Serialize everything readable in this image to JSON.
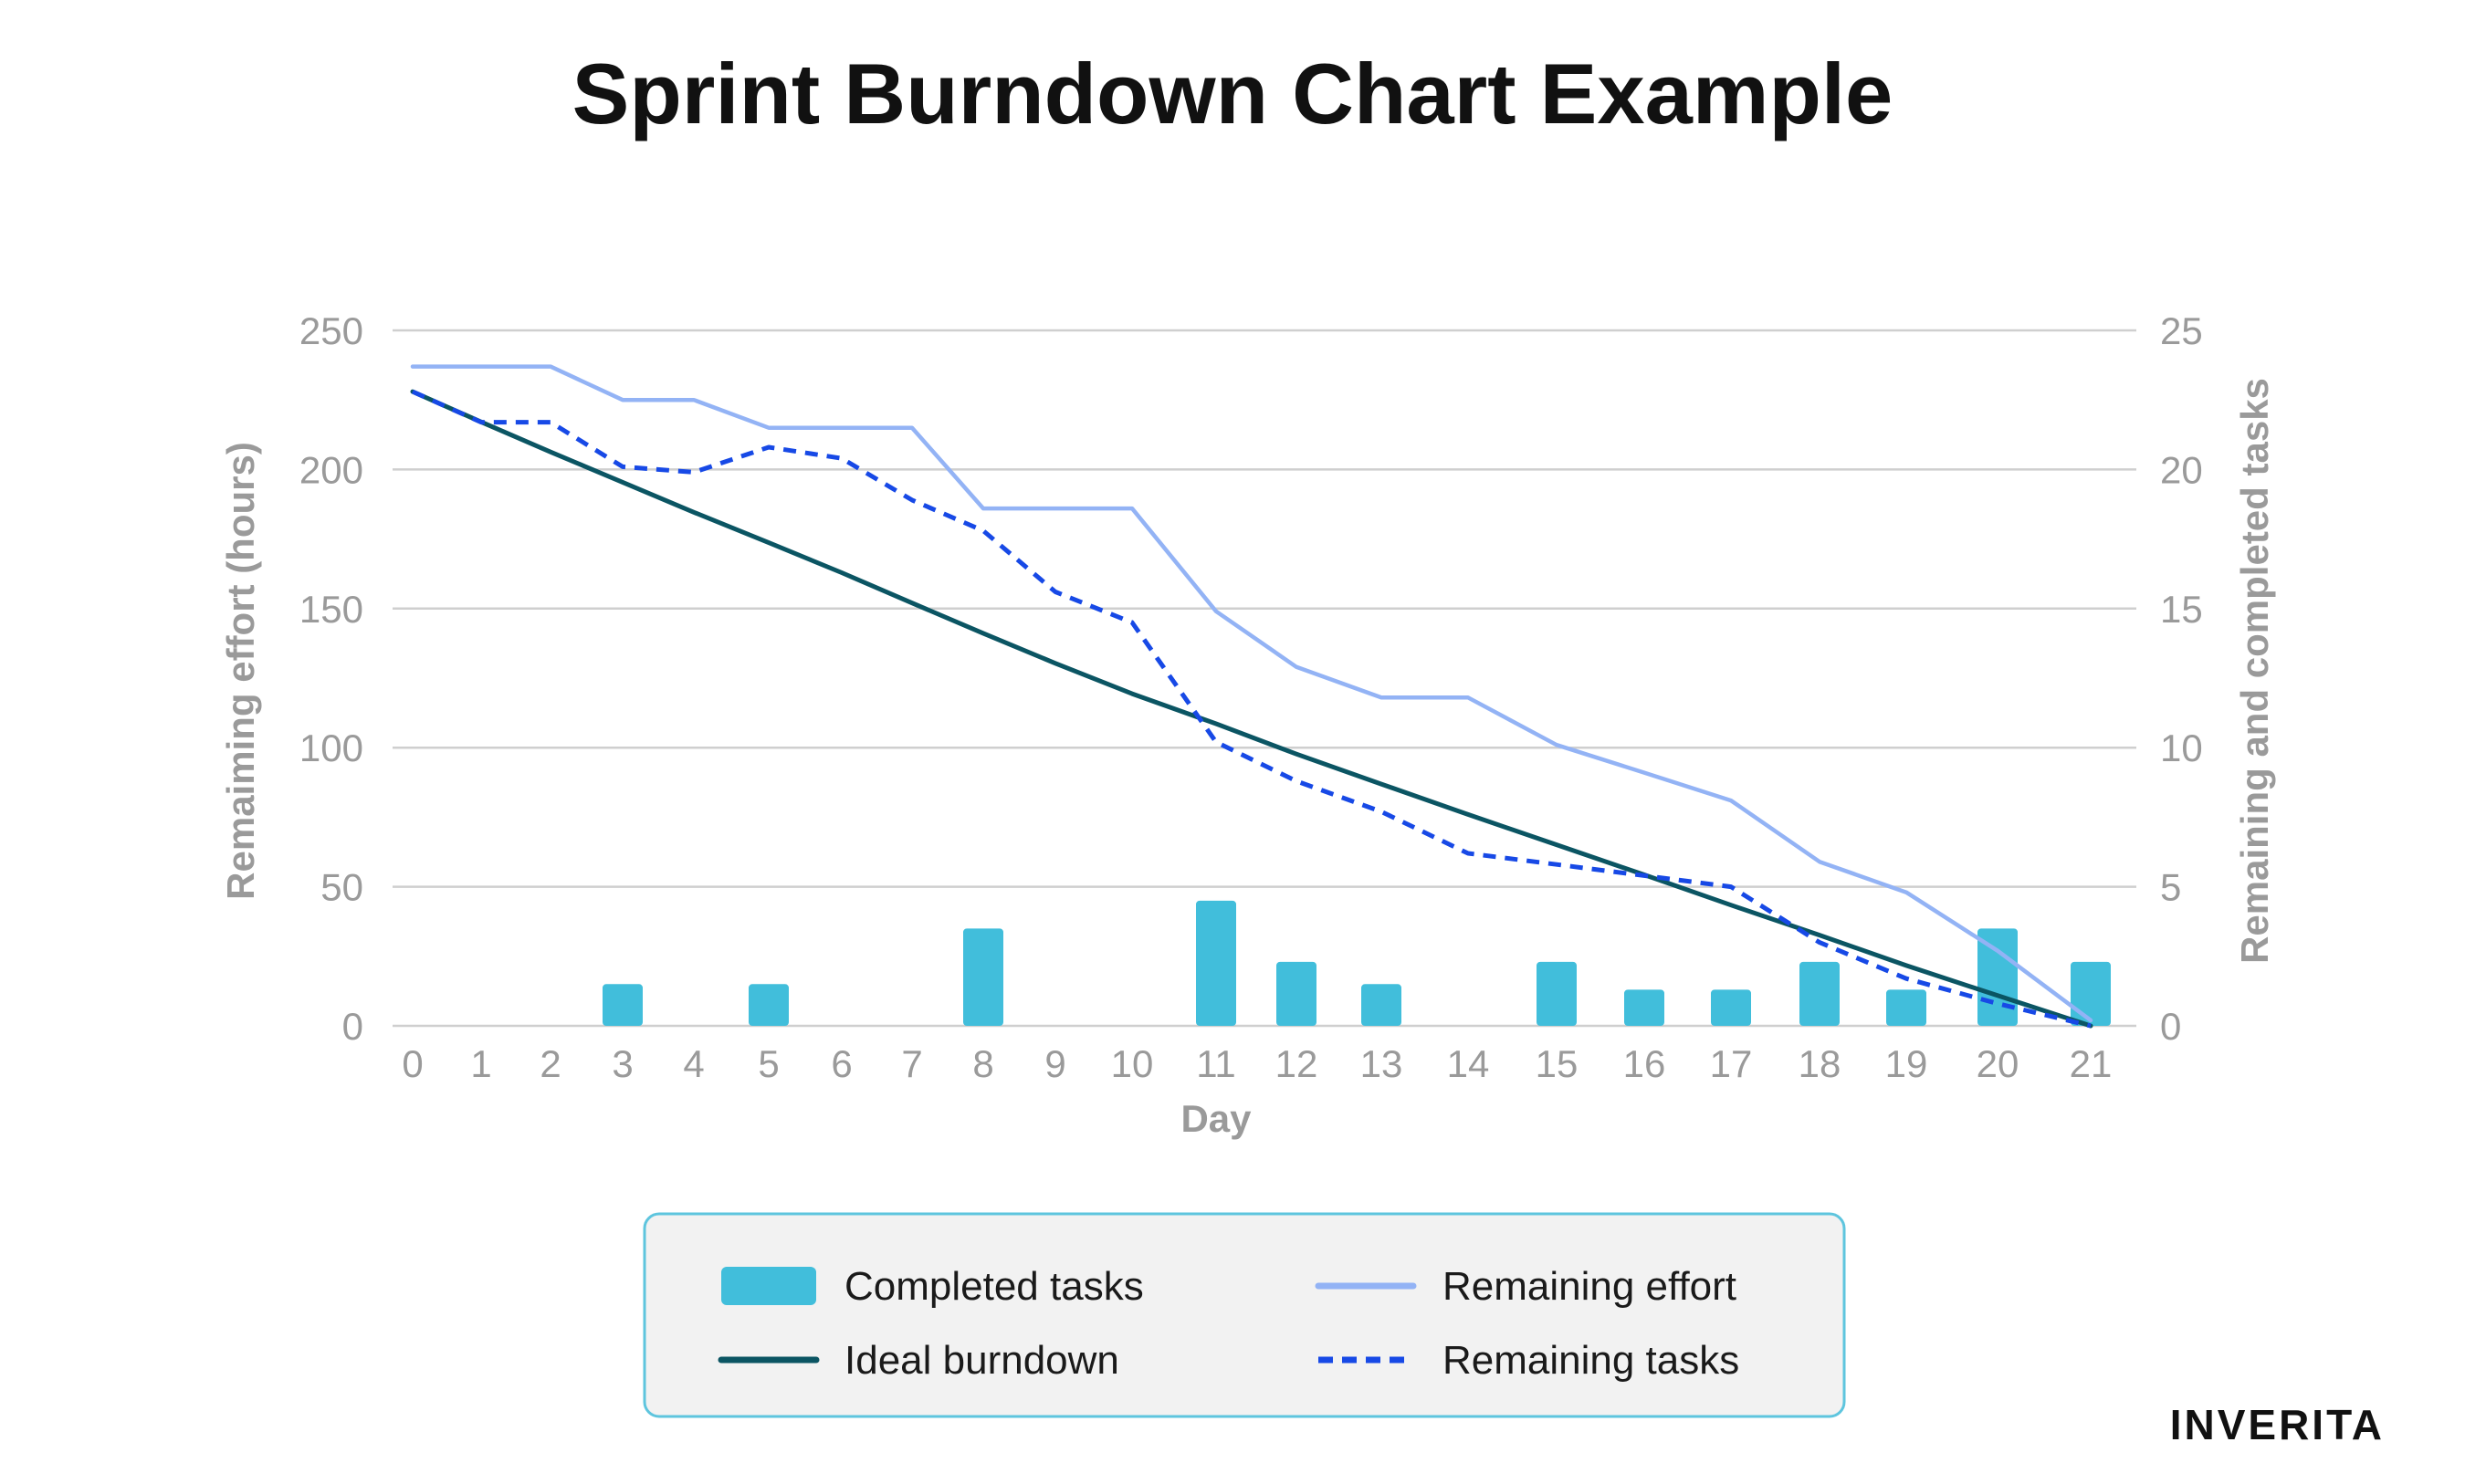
{
  "title": "Sprint Burndown Chart Example",
  "brand": "INVERITA",
  "chart_data": {
    "type": "bar+line",
    "title": "Sprint Burndown Chart Example",
    "xlabel": "Day",
    "ylabel_left": "Remaiming effort (hours)",
    "ylabel_right": "Remaining and completed tasks",
    "x": [
      0,
      1,
      2,
      3,
      4,
      5,
      6,
      7,
      8,
      9,
      10,
      11,
      12,
      13,
      14,
      15,
      16,
      17,
      18,
      19,
      20,
      21
    ],
    "x_tick_labels": [
      "0",
      "1",
      "2",
      "3",
      "4",
      "5",
      "6",
      "7",
      "8",
      "9",
      "10",
      "11",
      "12",
      "13",
      "14",
      "15",
      "16",
      "17",
      "18",
      "19",
      "20",
      "21"
    ],
    "ylim_left": [
      0,
      250
    ],
    "ylim_right": [
      0,
      25
    ],
    "y_left_ticks": [
      "0",
      "50",
      "100",
      "150",
      "200",
      "250"
    ],
    "y_right_ticks": [
      "0",
      "5",
      "10",
      "15",
      "20",
      "25"
    ],
    "grid": true,
    "legend_position": "bottom-center",
    "colors": {
      "completed_tasks": "#41bedb",
      "ideal_burndown": "#0b5563",
      "remaining_effort": "#93b3f5",
      "remaining_tasks": "#1749e6",
      "grid": "#cfcfcf",
      "legend_border": "#5ec5de",
      "legend_bg": "#f2f2f2"
    },
    "series": [
      {
        "name": "Completed tasks",
        "type": "bar",
        "axis": "right",
        "values": [
          0,
          0,
          0,
          1.5,
          0,
          1.5,
          0,
          0,
          3.5,
          0,
          0,
          4.5,
          2.3,
          1.5,
          0,
          2.3,
          1.3,
          1.3,
          2.3,
          1.3,
          3.5,
          2.3
        ]
      },
      {
        "name": "Ideal burndown",
        "type": "line",
        "axis": "left",
        "values": [
          228,
          217.1,
          206.3,
          195.4,
          184.6,
          173.7,
          162.9,
          152,
          141.1,
          130.3,
          119.4,
          108.6,
          97.7,
          86.9,
          76,
          65.1,
          54.3,
          43.4,
          32.6,
          21.7,
          10.9,
          0
        ]
      },
      {
        "name": "Remaining effort",
        "type": "line",
        "axis": "left",
        "values": [
          237,
          237,
          237,
          225,
          225,
          215,
          215,
          215,
          186,
          186,
          186,
          149,
          129,
          118,
          118,
          101,
          91,
          81,
          59,
          48,
          27,
          2
        ]
      },
      {
        "name": "Remaining tasks",
        "type": "line",
        "dash": true,
        "axis": "right",
        "values": [
          22.8,
          21.7,
          21.7,
          20.1,
          19.9,
          20.8,
          20.4,
          18.9,
          17.8,
          15.6,
          14.5,
          10.2,
          8.8,
          7.7,
          6.2,
          5.8,
          5.4,
          5.0,
          3.0,
          1.7,
          0.8,
          0
        ]
      }
    ]
  },
  "legend": {
    "completed_tasks": "Completed tasks",
    "ideal_burndown": "Ideal burndown",
    "remaining_effort": "Remaining effort",
    "remaining_tasks": "Remaining tasks"
  }
}
